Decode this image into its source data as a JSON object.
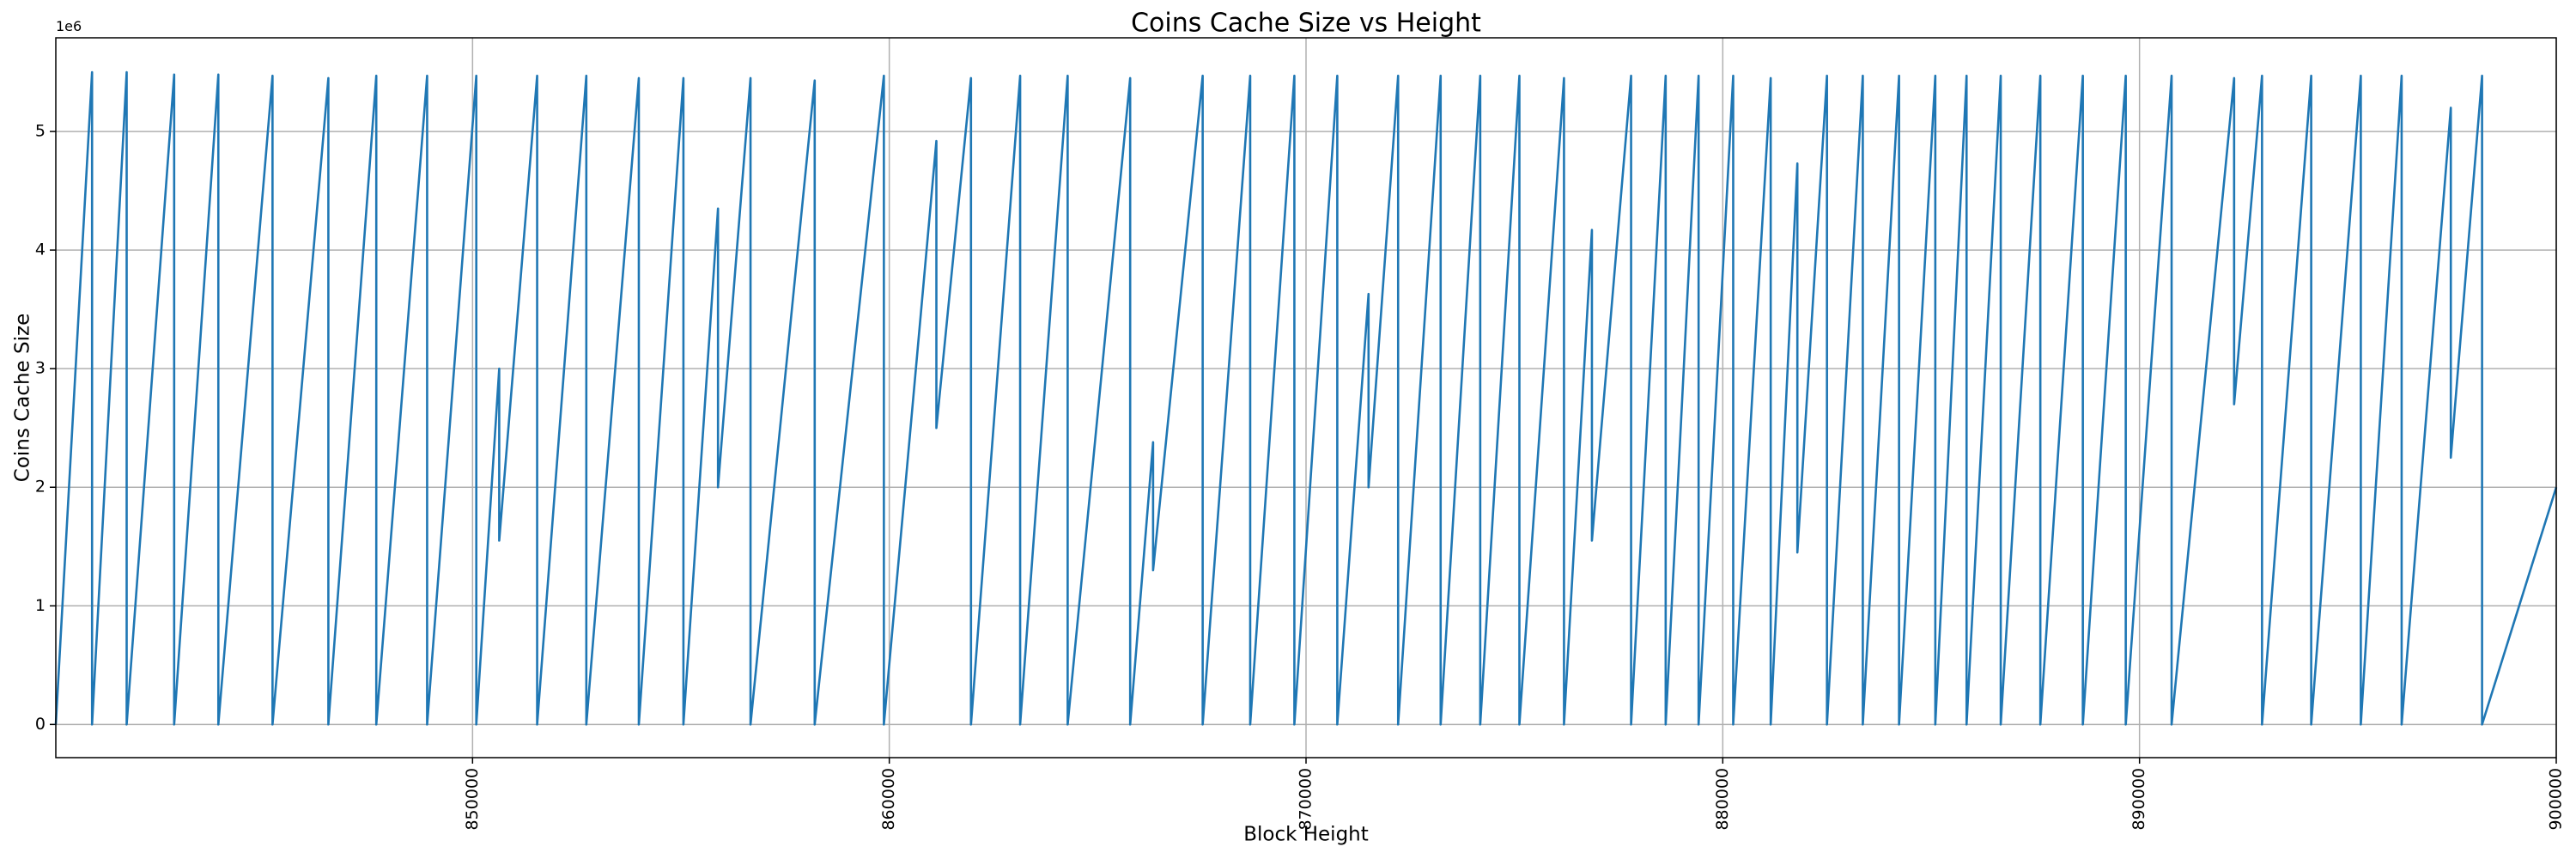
{
  "chart_data": {
    "type": "line",
    "title": "Coins Cache Size vs Height",
    "x_label": "Block Height",
    "y_label": "Coins Cache Size",
    "y_offset_label": "1e6",
    "color": "#1f77b4",
    "grid": true,
    "xlim": [
      840000,
      900000
    ],
    "ylim": [
      -0.28,
      5.79
    ],
    "xticks": [
      850000,
      860000,
      870000,
      880000,
      890000,
      900000
    ],
    "yticks": [
      0,
      1,
      2,
      3,
      4,
      5
    ],
    "x": [
      840000,
      840870,
      840870,
      841700,
      841700,
      842840,
      842840,
      843900,
      843900,
      845200,
      845200,
      846540,
      846540,
      847690,
      847690,
      848910,
      848910,
      850090,
      850090,
      850640,
      850640,
      851550,
      851550,
      852730,
      852730,
      853990,
      853990,
      855060,
      855060,
      855890,
      855890,
      856670,
      856670,
      858210,
      858210,
      859870,
      859870,
      861130,
      861130,
      861960,
      861960,
      863140,
      863140,
      864280,
      864280,
      865780,
      865780,
      866330,
      866330,
      867520,
      867520,
      868660,
      868660,
      869720,
      869720,
      870750,
      870750,
      871500,
      871500,
      872210,
      872210,
      873230,
      873230,
      874180,
      874180,
      875120,
      875120,
      876190,
      876190,
      876860,
      876860,
      877800,
      877800,
      878630,
      878630,
      879420,
      879420,
      880250,
      880250,
      881150,
      881150,
      881790,
      881790,
      882500,
      882500,
      883360,
      883360,
      884230,
      884230,
      885100,
      885100,
      885850,
      885850,
      886670,
      886670,
      887620,
      887620,
      888640,
      888640,
      889670,
      889670,
      890770,
      890770,
      892270,
      892270,
      892940,
      892940,
      894120,
      894120,
      895310,
      895310,
      896290,
      896290,
      897470,
      897470,
      898220,
      898220,
      900000
    ],
    "values": [
      0,
      5.5,
      0,
      5.5,
      0,
      5.48,
      0,
      5.48,
      0,
      5.47,
      0,
      5.45,
      0,
      5.47,
      0,
      5.47,
      0,
      5.47,
      0,
      3.0,
      1.55,
      5.47,
      0,
      5.47,
      0,
      5.45,
      0,
      5.45,
      0,
      4.35,
      2.0,
      5.45,
      0,
      5.43,
      0,
      5.47,
      0,
      4.92,
      2.5,
      5.45,
      0,
      5.47,
      0,
      5.47,
      0,
      5.45,
      0,
      2.38,
      1.3,
      5.47,
      0,
      5.47,
      0,
      5.47,
      0,
      5.47,
      0,
      3.63,
      2.0,
      5.47,
      0,
      5.47,
      0,
      5.47,
      0,
      5.47,
      0,
      5.45,
      0,
      4.17,
      1.55,
      5.47,
      0,
      5.47,
      0,
      5.47,
      0,
      5.47,
      0,
      5.45,
      0,
      4.73,
      1.45,
      5.47,
      0,
      5.47,
      0,
      5.47,
      0,
      5.47,
      0,
      5.47,
      0,
      5.47,
      0,
      5.47,
      0,
      5.47,
      0,
      5.47,
      0,
      5.47,
      0,
      5.45,
      2.7,
      5.47,
      0,
      5.47,
      0,
      5.47,
      0,
      5.47,
      0,
      5.2,
      2.25,
      5.47,
      0,
      2.0
    ]
  }
}
